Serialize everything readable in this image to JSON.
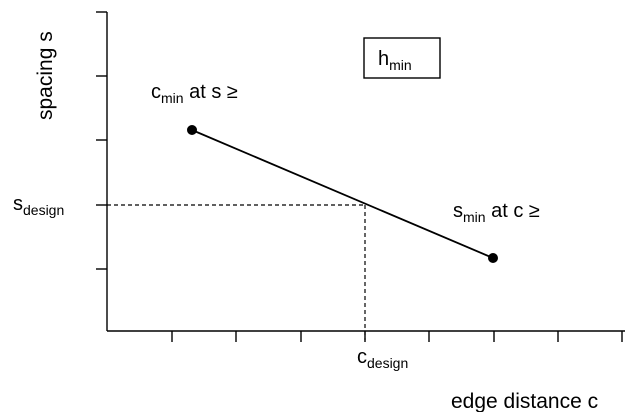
{
  "diagram": {
    "y_axis_title": "spacing s",
    "x_axis_title": "edge distance c",
    "box_label": {
      "main": "h",
      "sub": "min"
    },
    "point_left_label": {
      "main": "c",
      "sub": "min",
      "suffix": " at s ≥"
    },
    "point_right_label": {
      "main": "s",
      "sub": "min",
      "suffix": " at c ≥"
    },
    "s_design_label": {
      "main": "s",
      "sub": "design"
    },
    "c_design_label": {
      "main": "c",
      "sub": "design"
    },
    "colors": {
      "line": "#000000",
      "background": "#ffffff"
    }
  }
}
